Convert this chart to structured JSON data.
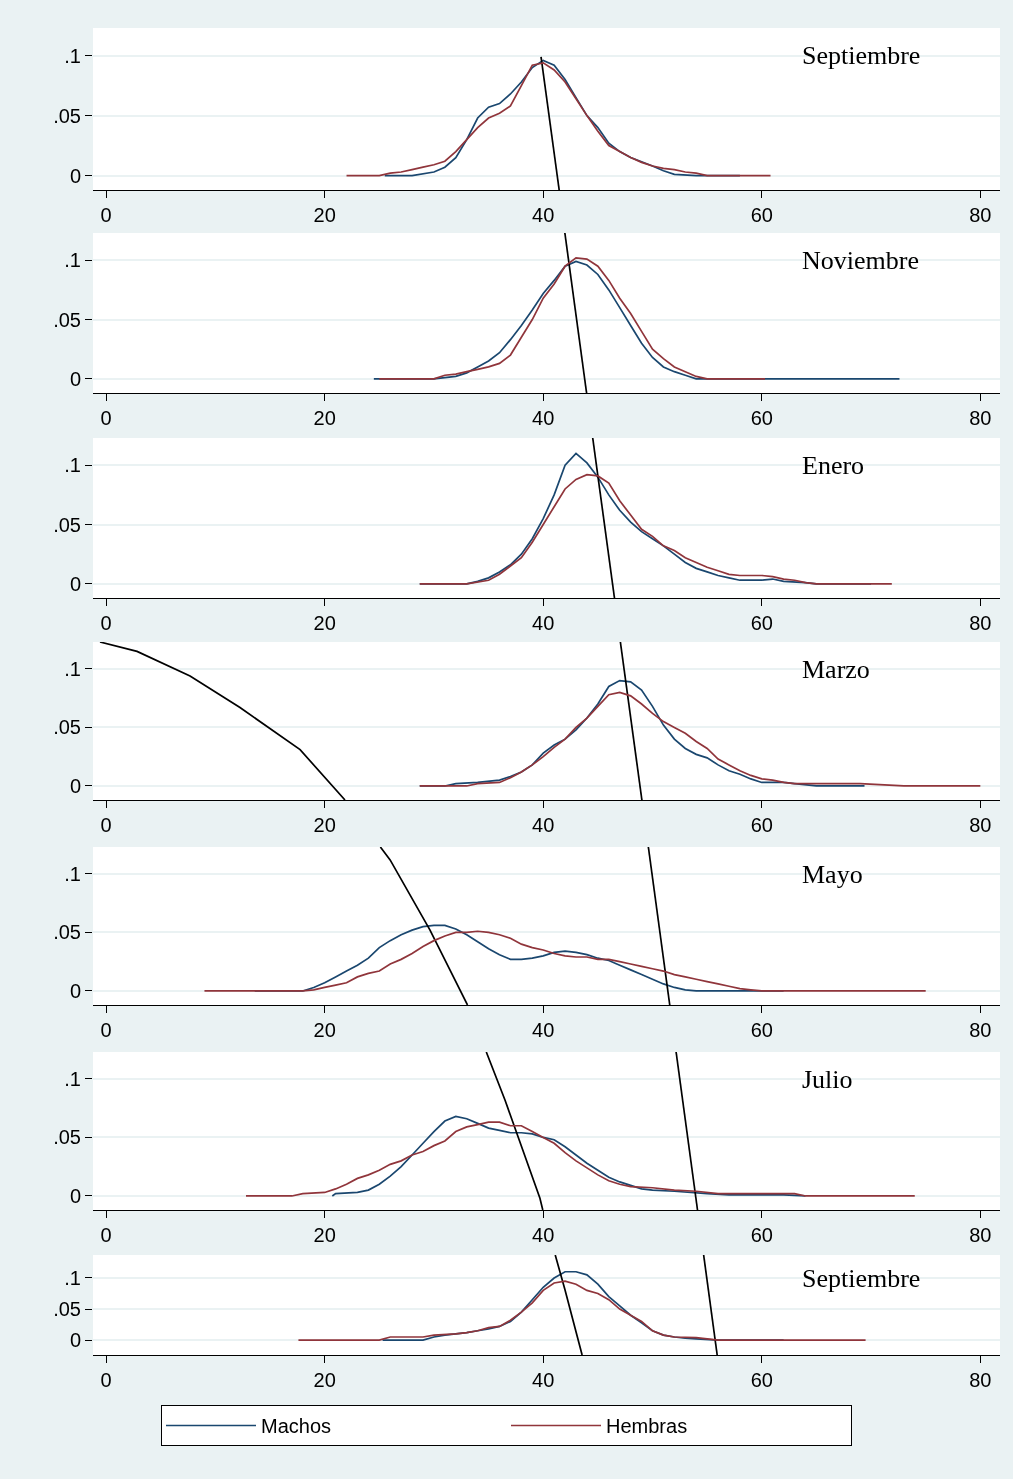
{
  "chart_data": [
    {
      "type": "line",
      "title": "Septiembre",
      "xlim": [
        -1.2,
        81.8
      ],
      "xticks": [
        0,
        20,
        40,
        60,
        80
      ],
      "ylim": [
        -0.012,
        0.123
      ],
      "yticks": [
        {
          "value": 0,
          "label": "0"
        },
        {
          "value": 0.05,
          "label": ".05"
        },
        {
          "value": 0.1,
          "label": ".1"
        }
      ],
      "grid": "y",
      "legend": "bottom",
      "series": [
        {
          "name": "Machos",
          "color": "#1a476f",
          "x": [
            25.5,
            28,
            30,
            31,
            32,
            33,
            34,
            35,
            36,
            37,
            38,
            39,
            40,
            41,
            42,
            43,
            44,
            45,
            46,
            47,
            48,
            50,
            51,
            52,
            54,
            58
          ],
          "values": [
            0,
            0,
            0.003,
            0.007,
            0.015,
            0.03,
            0.048,
            0.057,
            0.06,
            0.068,
            0.078,
            0.09,
            0.096,
            0.092,
            0.08,
            0.065,
            0.05,
            0.04,
            0.027,
            0.02,
            0.015,
            0.008,
            0.004,
            0.001,
            0,
            0
          ]
        },
        {
          "color": "#000000",
          "x": [
            39.8,
            41.46
          ],
          "values": [
            0.099,
            -0.012
          ]
        },
        {
          "name": "Hembras",
          "color": "#90353b",
          "x": [
            22,
            25,
            26,
            27,
            28,
            29,
            30,
            31,
            32,
            33,
            34,
            35,
            36,
            37,
            38,
            39,
            40,
            41,
            42,
            43,
            44,
            45,
            46,
            47,
            48,
            49,
            50,
            51,
            52,
            53,
            54,
            55,
            60.8
          ],
          "values": [
            0,
            0,
            0.002,
            0.003,
            0.005,
            0.007,
            0.009,
            0.012,
            0.02,
            0.03,
            0.04,
            0.048,
            0.052,
            0.058,
            0.075,
            0.092,
            0.094,
            0.088,
            0.078,
            0.064,
            0.05,
            0.037,
            0.025,
            0.02,
            0.015,
            0.011,
            0.008,
            0.006,
            0.005,
            0.003,
            0.002,
            0,
            0
          ]
        }
      ]
    },
    {
      "type": "line",
      "title": "Noviembre",
      "xlim": [
        -1.2,
        81.8
      ],
      "xticks": [
        0,
        20,
        40,
        60,
        80
      ],
      "ylim": [
        -0.012,
        0.123
      ],
      "yticks": [
        {
          "value": 0,
          "label": "0"
        },
        {
          "value": 0.05,
          "label": ".05"
        },
        {
          "value": 0.1,
          "label": ".1"
        }
      ],
      "grid": "y",
      "series": [
        {
          "color": "#1a476f",
          "x": [
            24.5,
            30,
            32,
            33,
            34,
            35,
            36,
            37,
            38,
            39,
            40,
            41,
            42,
            43,
            44,
            45,
            46,
            47,
            48,
            49,
            50,
            51,
            52,
            53,
            54,
            60,
            72.6
          ],
          "values": [
            0,
            0,
            0.002,
            0.005,
            0.01,
            0.015,
            0.022,
            0.033,
            0.045,
            0.058,
            0.072,
            0.083,
            0.095,
            0.099,
            0.096,
            0.088,
            0.075,
            0.06,
            0.045,
            0.03,
            0.018,
            0.01,
            0.006,
            0.003,
            0,
            0,
            0
          ]
        },
        {
          "color": "#000000",
          "x": [
            41.98,
            43.97
          ],
          "values": [
            0.123,
            -0.012
          ]
        },
        {
          "color": "#90353b",
          "x": [
            25,
            30,
            31,
            32,
            33,
            34,
            35,
            36,
            37,
            38,
            39,
            40,
            41,
            42,
            43,
            44,
            45,
            46,
            47,
            48,
            49,
            50,
            51,
            52,
            53,
            54,
            55,
            60.3
          ],
          "values": [
            0,
            0,
            0.003,
            0.004,
            0.006,
            0.008,
            0.01,
            0.013,
            0.02,
            0.035,
            0.05,
            0.068,
            0.08,
            0.095,
            0.102,
            0.101,
            0.095,
            0.083,
            0.068,
            0.055,
            0.04,
            0.025,
            0.017,
            0.01,
            0.006,
            0.002,
            0,
            0
          ]
        }
      ]
    },
    {
      "type": "line",
      "title": "Enero",
      "xlim": [
        -1.2,
        81.8
      ],
      "xticks": [
        0,
        20,
        40,
        60,
        80
      ],
      "ylim": [
        -0.012,
        0.123
      ],
      "yticks": [
        {
          "value": 0,
          "label": "0"
        },
        {
          "value": 0.05,
          "label": ".05"
        },
        {
          "value": 0.1,
          "label": ".1"
        }
      ],
      "grid": "y",
      "series": [
        {
          "color": "#1a476f",
          "x": [
            28.7,
            33,
            34,
            35,
            36,
            37,
            38,
            39,
            40,
            41,
            42,
            43,
            44,
            45,
            46,
            47,
            48,
            49,
            50,
            51,
            52,
            53,
            54,
            55,
            56,
            57,
            58,
            60,
            61,
            62,
            64,
            65,
            70
          ],
          "values": [
            0,
            0,
            0.002,
            0.005,
            0.01,
            0.016,
            0.025,
            0.038,
            0.055,
            0.075,
            0.1,
            0.11,
            0.102,
            0.09,
            0.075,
            0.062,
            0.052,
            0.044,
            0.038,
            0.032,
            0.025,
            0.018,
            0.013,
            0.01,
            0.007,
            0.005,
            0.003,
            0.003,
            0.004,
            0.002,
            0.001,
            0,
            0
          ]
        },
        {
          "color": "#000000",
          "x": [
            44.53,
            46.52
          ],
          "values": [
            0.123,
            -0.012
          ]
        },
        {
          "color": "#90353b",
          "x": [
            28.7,
            33,
            35,
            36,
            37,
            38,
            39,
            40,
            41,
            42,
            43,
            44,
            45,
            46,
            47,
            48,
            49,
            50,
            51,
            52,
            53,
            54,
            55,
            56,
            57,
            58,
            60,
            61,
            62,
            63,
            64,
            65,
            71.9
          ],
          "values": [
            0,
            0,
            0.003,
            0.008,
            0.015,
            0.022,
            0.035,
            0.05,
            0.065,
            0.08,
            0.088,
            0.092,
            0.091,
            0.085,
            0.07,
            0.058,
            0.046,
            0.04,
            0.032,
            0.028,
            0.022,
            0.018,
            0.014,
            0.011,
            0.008,
            0.007,
            0.007,
            0.006,
            0.004,
            0.003,
            0.001,
            0,
            0
          ]
        }
      ]
    },
    {
      "type": "line",
      "title": "Marzo",
      "xlim": [
        -1.2,
        81.8
      ],
      "xticks": [
        0,
        20,
        40,
        60,
        80
      ],
      "ylim": [
        -0.012,
        0.123
      ],
      "yticks": [
        {
          "value": 0,
          "label": "0"
        },
        {
          "value": 0.05,
          "label": ".05"
        },
        {
          "value": 0.1,
          "label": ".1"
        }
      ],
      "grid": "y",
      "series": [
        {
          "color": "#1a476f",
          "x": [
            28.7,
            31,
            32,
            34,
            36,
            37,
            38,
            39,
            40,
            41,
            42,
            43,
            44,
            45,
            46,
            47,
            48,
            49,
            50,
            51,
            52,
            53,
            54,
            55,
            56,
            57,
            58,
            59,
            60,
            62,
            63,
            65,
            69.4
          ],
          "values": [
            0,
            0,
            0.002,
            0.003,
            0.005,
            0.008,
            0.012,
            0.018,
            0.028,
            0.035,
            0.04,
            0.048,
            0.058,
            0.07,
            0.085,
            0.09,
            0.089,
            0.082,
            0.068,
            0.052,
            0.04,
            0.032,
            0.027,
            0.024,
            0.018,
            0.013,
            0.01,
            0.006,
            0.003,
            0.003,
            0.002,
            0,
            0
          ]
        },
        {
          "color": "#000000",
          "x": [
            47.06,
            49.03
          ],
          "values": [
            0.123,
            -0.012
          ]
        },
        {
          "color": "#000000",
          "x": [
            -0.56,
            2.83,
            7.68,
            12.25,
            17.75,
            21.86
          ],
          "values": [
            0.123,
            0.115,
            0.094,
            0.067,
            0.031,
            -0.012
          ]
        },
        {
          "color": "#90353b",
          "x": [
            28.7,
            33,
            34,
            36,
            37,
            38,
            39,
            40,
            41,
            42,
            43,
            44,
            45,
            46,
            47,
            48,
            49,
            50,
            51,
            52,
            53,
            54,
            55,
            56,
            57,
            58,
            59,
            60,
            61,
            62,
            63,
            67,
            69,
            73,
            80
          ],
          "values": [
            0,
            0,
            0.002,
            0.003,
            0.007,
            0.012,
            0.018,
            0.025,
            0.033,
            0.04,
            0.05,
            0.058,
            0.068,
            0.078,
            0.08,
            0.077,
            0.07,
            0.062,
            0.055,
            0.05,
            0.045,
            0.038,
            0.032,
            0.023,
            0.018,
            0.013,
            0.009,
            0.006,
            0.005,
            0.003,
            0.002,
            0.002,
            0.002,
            0,
            0
          ]
        }
      ]
    },
    {
      "type": "line",
      "title": "Mayo",
      "xlim": [
        -1.2,
        81.8
      ],
      "xticks": [
        0,
        20,
        40,
        60,
        80
      ],
      "ylim": [
        -0.012,
        0.123
      ],
      "yticks": [
        {
          "value": 0,
          "label": "0"
        },
        {
          "value": 0.05,
          "label": ".05"
        },
        {
          "value": 0.1,
          "label": ".1"
        }
      ],
      "grid": "y",
      "series": [
        {
          "color": "#1a476f",
          "x": [
            13.6,
            18,
            19,
            20,
            21,
            22,
            23,
            24,
            25,
            26,
            27,
            28,
            29,
            30,
            31,
            32,
            33,
            34,
            35,
            36,
            37,
            38,
            39,
            40,
            41,
            42,
            43,
            44,
            45,
            46,
            47,
            48,
            49,
            50,
            51,
            52,
            53,
            54,
            62
          ],
          "values": [
            0,
            0,
            0.003,
            0.007,
            0.012,
            0.017,
            0.022,
            0.028,
            0.037,
            0.043,
            0.048,
            0.052,
            0.055,
            0.056,
            0.056,
            0.053,
            0.048,
            0.042,
            0.036,
            0.031,
            0.027,
            0.027,
            0.028,
            0.03,
            0.033,
            0.034,
            0.033,
            0.031,
            0.028,
            0.026,
            0.022,
            0.018,
            0.014,
            0.01,
            0.006,
            0.003,
            0.001,
            0,
            0
          ]
        },
        {
          "color": "#000000",
          "x": [
            49.62,
            51.58
          ],
          "values": [
            0.123,
            -0.012
          ]
        },
        {
          "color": "#000000",
          "x": [
            25.1,
            25.99,
            29.64,
            33.07
          ],
          "values": [
            0.123,
            0.112,
            0.052,
            -0.012
          ]
        },
        {
          "color": "#90353b",
          "x": [
            9,
            18,
            19,
            20,
            21,
            22,
            23,
            24,
            25,
            26,
            27,
            28,
            29,
            30,
            31,
            32,
            33,
            34,
            35,
            36,
            37,
            38,
            39,
            40,
            41,
            42,
            43,
            44,
            45,
            46,
            47,
            48,
            49,
            50,
            51,
            52,
            53,
            54,
            55,
            56,
            57,
            58,
            59,
            60,
            75
          ],
          "values": [
            0,
            0,
            0.001,
            0.003,
            0.005,
            0.007,
            0.012,
            0.015,
            0.017,
            0.023,
            0.027,
            0.032,
            0.038,
            0.043,
            0.047,
            0.05,
            0.05,
            0.051,
            0.05,
            0.048,
            0.045,
            0.04,
            0.037,
            0.035,
            0.032,
            0.03,
            0.029,
            0.029,
            0.027,
            0.027,
            0.025,
            0.023,
            0.021,
            0.019,
            0.017,
            0.014,
            0.012,
            0.01,
            0.008,
            0.006,
            0.004,
            0.002,
            0.001,
            0,
            0
          ]
        }
      ]
    },
    {
      "type": "line",
      "title": "Julio",
      "xlim": [
        -1.2,
        81.8
      ],
      "xticks": [
        0,
        20,
        40,
        60,
        80
      ],
      "ylim": [
        -0.012,
        0.123
      ],
      "yticks": [
        {
          "value": 0,
          "label": "0"
        },
        {
          "value": 0.05,
          "label": ".05"
        },
        {
          "value": 0.1,
          "label": ".1"
        }
      ],
      "grid": "y",
      "series": [
        {
          "color": "#1a476f",
          "x": [
            20.7,
            21,
            23,
            24,
            25,
            26,
            27,
            28,
            29,
            30,
            31,
            32,
            33,
            34,
            35,
            36,
            37,
            38,
            39,
            40,
            41,
            42,
            43,
            44,
            45,
            46,
            47,
            48,
            49,
            50,
            52,
            55,
            57,
            62,
            64
          ],
          "values": [
            0,
            0.002,
            0.003,
            0.005,
            0.01,
            0.017,
            0.025,
            0.035,
            0.045,
            0.055,
            0.064,
            0.068,
            0.066,
            0.062,
            0.058,
            0.056,
            0.054,
            0.054,
            0.053,
            0.05,
            0.048,
            0.042,
            0.035,
            0.028,
            0.022,
            0.016,
            0.012,
            0.009,
            0.006,
            0.005,
            0.004,
            0.002,
            0.001,
            0.001,
            0
          ]
        },
        {
          "color": "#000000",
          "x": [
            52.16,
            54.12
          ],
          "values": [
            0.123,
            -0.012
          ]
        },
        {
          "color": "#000000",
          "x": [
            34.79,
            36.5,
            39.7,
            39.96
          ],
          "values": [
            0.123,
            0.082,
            -0.002,
            -0.012
          ]
        },
        {
          "color": "#90353b",
          "x": [
            12.8,
            17,
            18,
            20,
            21,
            22,
            23,
            24,
            25,
            26,
            27,
            28,
            29,
            30,
            31,
            32,
            33,
            34,
            35,
            36,
            37,
            38,
            39,
            40,
            41,
            42,
            43,
            44,
            45,
            46,
            47,
            48,
            50,
            52,
            54,
            56,
            63,
            64,
            74
          ],
          "values": [
            0,
            0,
            0.002,
            0.003,
            0.006,
            0.01,
            0.015,
            0.018,
            0.022,
            0.027,
            0.03,
            0.035,
            0.038,
            0.043,
            0.047,
            0.055,
            0.059,
            0.061,
            0.063,
            0.063,
            0.06,
            0.06,
            0.055,
            0.05,
            0.045,
            0.037,
            0.03,
            0.024,
            0.018,
            0.013,
            0.01,
            0.008,
            0.007,
            0.005,
            0.004,
            0.002,
            0.002,
            0,
            0
          ]
        }
      ]
    },
    {
      "type": "line",
      "title": "Septiembre",
      "xlim": [
        -1.2,
        81.8
      ],
      "xticks": [
        0,
        20,
        40,
        60,
        80
      ],
      "ylim": [
        -0.024,
        0.137
      ],
      "yticks": [
        {
          "value": 0,
          "label": "0"
        },
        {
          "value": 0.05,
          "label": ".05"
        },
        {
          "value": 0.1,
          "label": ".1"
        }
      ],
      "grid": "y",
      "series": [
        {
          "color": "#1a476f",
          "x": [
            25.3,
            29,
            30,
            31,
            32,
            33,
            34,
            35,
            36,
            37,
            38,
            39,
            40,
            41,
            42,
            43,
            44,
            45,
            46,
            47,
            48,
            49,
            50,
            51,
            52,
            53,
            54,
            56,
            62
          ],
          "values": [
            0,
            0,
            0.005,
            0.008,
            0.01,
            0.012,
            0.015,
            0.018,
            0.022,
            0.03,
            0.045,
            0.065,
            0.085,
            0.1,
            0.11,
            0.11,
            0.105,
            0.09,
            0.07,
            0.055,
            0.04,
            0.028,
            0.015,
            0.008,
            0.005,
            0.003,
            0.002,
            0,
            0
          ]
        },
        {
          "color": "#000000",
          "x": [
            54.68,
            55.92
          ],
          "values": [
            0.137,
            -0.024
          ]
        },
        {
          "color": "#000000",
          "x": [
            41.1,
            41.99,
            43.56
          ],
          "values": [
            0.137,
            0.081,
            -0.024
          ]
        },
        {
          "color": "#90353b",
          "x": [
            17.6,
            25,
            26,
            29,
            30,
            32,
            33,
            34,
            35,
            36,
            37,
            38,
            39,
            40,
            41,
            42,
            43,
            44,
            45,
            46,
            47,
            48,
            49,
            50,
            51,
            52,
            54,
            55,
            56,
            69.5
          ],
          "values": [
            0,
            0,
            0.005,
            0.005,
            0.008,
            0.01,
            0.012,
            0.015,
            0.02,
            0.022,
            0.032,
            0.045,
            0.06,
            0.08,
            0.092,
            0.095,
            0.09,
            0.08,
            0.075,
            0.065,
            0.05,
            0.04,
            0.03,
            0.015,
            0.008,
            0.005,
            0.004,
            0.002,
            0,
            0
          ]
        }
      ]
    }
  ]
}
